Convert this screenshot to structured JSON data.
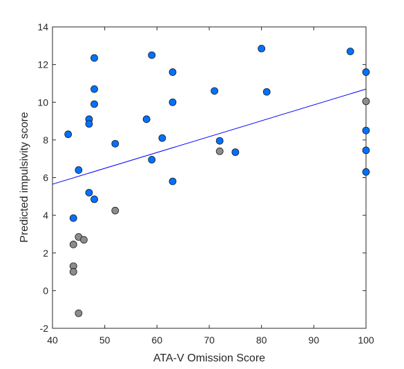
{
  "chart_data": {
    "type": "scatter",
    "xlabel": "ATA-V Omission Score",
    "ylabel": "Predicted impulsivity score",
    "xlim": [
      40,
      100
    ],
    "ylim": [
      -2,
      14
    ],
    "x_ticks": [
      40,
      50,
      60,
      70,
      80,
      90,
      100
    ],
    "y_ticks": [
      -2,
      0,
      2,
      4,
      6,
      8,
      10,
      12,
      14
    ],
    "grid": false,
    "series": [
      {
        "color": "#0072ff",
        "points": [
          [
            43,
            8.3
          ],
          [
            44,
            3.85
          ],
          [
            45,
            6.4
          ],
          [
            47,
            9.1
          ],
          [
            47,
            8.85
          ],
          [
            47,
            5.2
          ],
          [
            48,
            12.35
          ],
          [
            48,
            10.7
          ],
          [
            48,
            9.9
          ],
          [
            48,
            4.85
          ],
          [
            52,
            7.8
          ],
          [
            58,
            9.1
          ],
          [
            59,
            12.5
          ],
          [
            59,
            6.95
          ],
          [
            61,
            8.1
          ],
          [
            63,
            11.6
          ],
          [
            63,
            10.0
          ],
          [
            63,
            5.8
          ],
          [
            71,
            10.6
          ],
          [
            72,
            7.95
          ],
          [
            75,
            7.35
          ],
          [
            80,
            12.85
          ],
          [
            81,
            10.55
          ],
          [
            97,
            12.7
          ],
          [
            100,
            11.6
          ],
          [
            100,
            8.5
          ],
          [
            100,
            7.45
          ],
          [
            100,
            6.3
          ]
        ]
      },
      {
        "color": "#8c8c8c",
        "points": [
          [
            44,
            2.45
          ],
          [
            44,
            1.3
          ],
          [
            44,
            1.0
          ],
          [
            45,
            2.85
          ],
          [
            45,
            -1.2
          ],
          [
            46,
            2.7
          ],
          [
            52,
            4.25
          ],
          [
            72,
            7.4
          ],
          [
            100,
            10.05
          ]
        ]
      }
    ],
    "fit_line": {
      "color": "#0000ff",
      "x": [
        40,
        100
      ],
      "y": [
        5.65,
        10.7
      ]
    }
  }
}
